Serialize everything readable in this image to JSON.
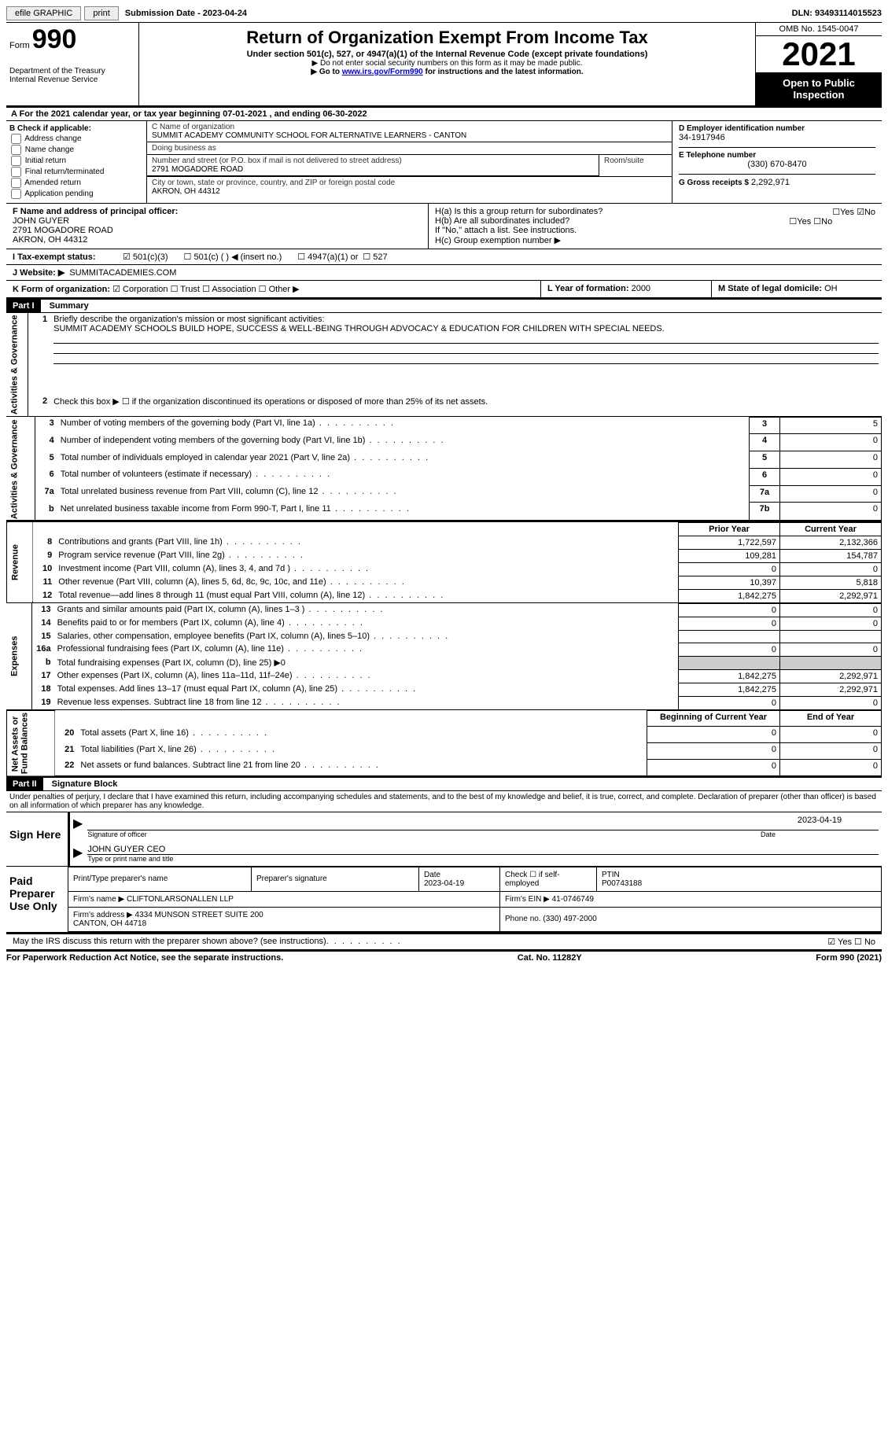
{
  "topbar": {
    "efile": "efile GRAPHIC",
    "print": "print",
    "sub_label": "Submission Date - 2023-04-24",
    "dln": "DLN: 93493114015523"
  },
  "header": {
    "form_label": "Form",
    "form_num": "990",
    "dept": "Department of the Treasury\nInternal Revenue Service",
    "title": "Return of Organization Exempt From Income Tax",
    "subtitle": "Under section 501(c), 527, or 4947(a)(1) of the Internal Revenue Code (except private foundations)",
    "note1": "▶ Do not enter social security numbers on this form as it may be made public.",
    "note2_pre": "▶ Go to ",
    "note2_link": "www.irs.gov/Form990",
    "note2_post": " for instructions and the latest information.",
    "omb": "OMB No. 1545-0047",
    "year": "2021",
    "open": "Open to Public Inspection"
  },
  "row_a": "A For the 2021 calendar year, or tax year beginning 07-01-2021   , and ending 06-30-2022",
  "section_b": {
    "label": "B Check if applicable:",
    "items": [
      "Address change",
      "Name change",
      "Initial return",
      "Final return/terminated",
      "Amended return",
      "Application pending"
    ]
  },
  "section_c": {
    "name_label": "C Name of organization",
    "name": "SUMMIT ACADEMY COMMUNITY SCHOOL FOR ALTERNATIVE LEARNERS - CANTON",
    "dba_label": "Doing business as",
    "dba": "",
    "addr_label": "Number and street (or P.O. box if mail is not delivered to street address)",
    "room_label": "Room/suite",
    "addr": "2791 MOGADORE ROAD",
    "city_label": "City or town, state or province, country, and ZIP or foreign postal code",
    "city": "AKRON, OH  44312"
  },
  "section_d": {
    "ein_label": "D Employer identification number",
    "ein": "34-1917946",
    "phone_label": "E Telephone number",
    "phone": "(330) 670-8470",
    "gross_label": "G Gross receipts $",
    "gross": "2,292,971"
  },
  "section_f": {
    "label": "F  Name and address of principal officer:",
    "name": "JOHN GUYER",
    "addr": "2791 MOGADORE ROAD",
    "city": "AKRON, OH  44312"
  },
  "section_h": {
    "ha": "H(a)  Is this a group return for subordinates?",
    "hb": "H(b)  Are all subordinates included?",
    "hb_note": "If \"No,\" attach a list. See instructions.",
    "hc": "H(c)  Group exemption number ▶",
    "yes": "Yes",
    "no": "No"
  },
  "row_i": {
    "label": "I   Tax-exempt status:",
    "opts": [
      "501(c)(3)",
      "501(c) (  ) ◀ (insert no.)",
      "4947(a)(1) or",
      "527"
    ]
  },
  "row_j": {
    "label": "J   Website: ▶",
    "val": "SUMMITACADEMIES.COM"
  },
  "row_k": {
    "label": "K Form of organization:",
    "opts": [
      "Corporation",
      "Trust",
      "Association",
      "Other ▶"
    ]
  },
  "row_l": {
    "label": "L Year of formation:",
    "val": "2000"
  },
  "row_m": {
    "label": "M State of legal domicile:",
    "val": "OH"
  },
  "part1": {
    "hdr": "Part I",
    "title": "Summary",
    "tab_ag": "Activities & Governance",
    "tab_rev": "Revenue",
    "tab_exp": "Expenses",
    "tab_na": "Net Assets or\nFund Balances",
    "l1_label": "Briefly describe the organization's mission or most significant activities:",
    "l1_text": "SUMMIT ACADEMY SCHOOLS BUILD HOPE, SUCCESS & WELL-BEING THROUGH ADVOCACY & EDUCATION FOR CHILDREN WITH SPECIAL NEEDS.",
    "l2": "Check this box ▶ ☐  if the organization discontinued its operations or disposed of more than 25% of its net assets.",
    "lines_gov": [
      {
        "n": "3",
        "t": "Number of voting members of the governing body (Part VI, line 1a)",
        "box": "3",
        "v": "5"
      },
      {
        "n": "4",
        "t": "Number of independent voting members of the governing body (Part VI, line 1b)",
        "box": "4",
        "v": "0"
      },
      {
        "n": "5",
        "t": "Total number of individuals employed in calendar year 2021 (Part V, line 2a)",
        "box": "5",
        "v": "0"
      },
      {
        "n": "6",
        "t": "Total number of volunteers (estimate if necessary)",
        "box": "6",
        "v": "0"
      },
      {
        "n": "7a",
        "t": "Total unrelated business revenue from Part VIII, column (C), line 12",
        "box": "7a",
        "v": "0"
      },
      {
        "n": "b",
        "t": "Net unrelated business taxable income from Form 990-T, Part I, line 11",
        "box": "7b",
        "v": "0"
      }
    ],
    "col_prior": "Prior Year",
    "col_current": "Current Year",
    "col_begin": "Beginning of Current Year",
    "col_end": "End of Year",
    "lines_rev": [
      {
        "n": "8",
        "t": "Contributions and grants (Part VIII, line 1h)",
        "p": "1,722,597",
        "c": "2,132,366"
      },
      {
        "n": "9",
        "t": "Program service revenue (Part VIII, line 2g)",
        "p": "109,281",
        "c": "154,787"
      },
      {
        "n": "10",
        "t": "Investment income (Part VIII, column (A), lines 3, 4, and 7d )",
        "p": "0",
        "c": "0"
      },
      {
        "n": "11",
        "t": "Other revenue (Part VIII, column (A), lines 5, 6d, 8c, 9c, 10c, and 11e)",
        "p": "10,397",
        "c": "5,818"
      },
      {
        "n": "12",
        "t": "Total revenue—add lines 8 through 11 (must equal Part VIII, column (A), line 12)",
        "p": "1,842,275",
        "c": "2,292,971"
      }
    ],
    "lines_exp": [
      {
        "n": "13",
        "t": "Grants and similar amounts paid (Part IX, column (A), lines 1–3 )",
        "p": "0",
        "c": "0"
      },
      {
        "n": "14",
        "t": "Benefits paid to or for members (Part IX, column (A), line 4)",
        "p": "0",
        "c": "0"
      },
      {
        "n": "15",
        "t": "Salaries, other compensation, employee benefits (Part IX, column (A), lines 5–10)",
        "p": "",
        "c": ""
      },
      {
        "n": "16a",
        "t": "Professional fundraising fees (Part IX, column (A), line 11e)",
        "p": "0",
        "c": "0"
      },
      {
        "n": "b",
        "t": "Total fundraising expenses (Part IX, column (D), line 25) ▶0",
        "p": "grey",
        "c": "grey"
      },
      {
        "n": "17",
        "t": "Other expenses (Part IX, column (A), lines 11a–11d, 11f–24e)",
        "p": "1,842,275",
        "c": "2,292,971"
      },
      {
        "n": "18",
        "t": "Total expenses. Add lines 13–17 (must equal Part IX, column (A), line 25)",
        "p": "1,842,275",
        "c": "2,292,971"
      },
      {
        "n": "19",
        "t": "Revenue less expenses. Subtract line 18 from line 12",
        "p": "0",
        "c": "0"
      }
    ],
    "lines_na": [
      {
        "n": "20",
        "t": "Total assets (Part X, line 16)",
        "p": "0",
        "c": "0"
      },
      {
        "n": "21",
        "t": "Total liabilities (Part X, line 26)",
        "p": "0",
        "c": "0"
      },
      {
        "n": "22",
        "t": "Net assets or fund balances. Subtract line 21 from line 20",
        "p": "0",
        "c": "0"
      }
    ]
  },
  "part2": {
    "hdr": "Part II",
    "title": "Signature Block",
    "decl": "Under penalties of perjury, I declare that I have examined this return, including accompanying schedules and statements, and to the best of my knowledge and belief, it is true, correct, and complete. Declaration of preparer (other than officer) is based on all information of which preparer has any knowledge.",
    "sign_here": "Sign Here",
    "sig_officer": "Signature of officer",
    "sig_date": "2023-04-19",
    "sig_date_label": "Date",
    "sig_name": "JOHN GUYER CEO",
    "sig_name_label": "Type or print name and title",
    "paid": "Paid Preparer Use Only",
    "prep_name_label": "Print/Type preparer's name",
    "prep_sig_label": "Preparer's signature",
    "prep_date_label": "Date",
    "prep_date": "2023-04-19",
    "self_emp": "Check ☐ if self-employed",
    "ptin_label": "PTIN",
    "ptin": "P00743188",
    "firm_name_label": "Firm's name    ▶",
    "firm_name": "CLIFTONLARSONALLEN LLP",
    "firm_ein_label": "Firm's EIN ▶",
    "firm_ein": "41-0746749",
    "firm_addr_label": "Firm's address ▶",
    "firm_addr": "4334 MUNSON STREET SUITE 200\nCANTON, OH  44718",
    "firm_phone_label": "Phone no.",
    "firm_phone": "(330) 497-2000",
    "discuss": "May the IRS discuss this return with the preparer shown above? (see instructions)"
  },
  "footer": {
    "left": "For Paperwork Reduction Act Notice, see the separate instructions.",
    "mid": "Cat. No. 11282Y",
    "right": "Form 990 (2021)"
  }
}
